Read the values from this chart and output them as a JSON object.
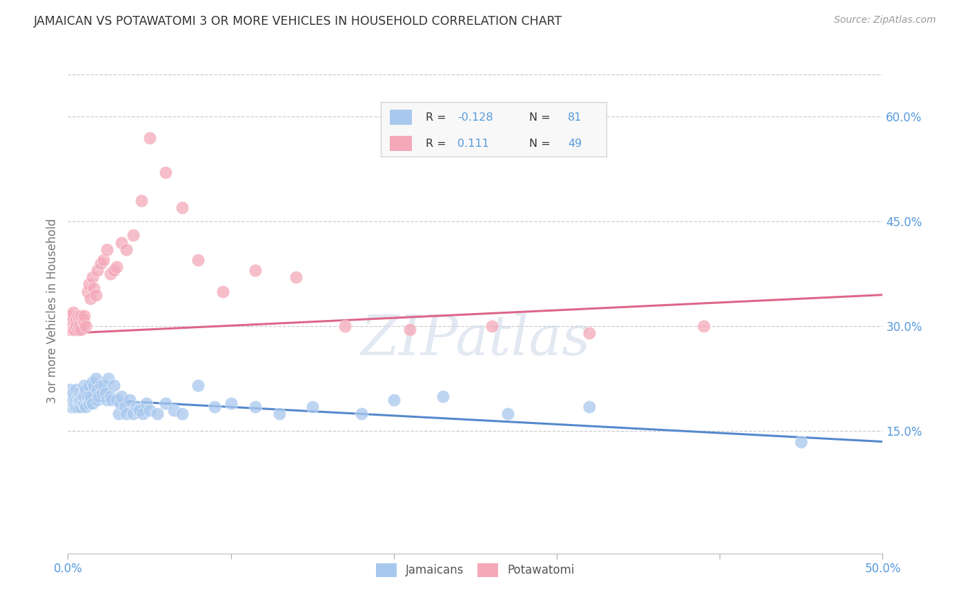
{
  "title": "JAMAICAN VS POTAWATOMI 3 OR MORE VEHICLES IN HOUSEHOLD CORRELATION CHART",
  "source": "Source: ZipAtlas.com",
  "ylabel": "3 or more Vehicles in Household",
  "ytick_vals": [
    0.15,
    0.3,
    0.45,
    0.6
  ],
  "ytick_labels": [
    "15.0%",
    "30.0%",
    "45.0%",
    "60.0%"
  ],
  "xlim": [
    0.0,
    0.5
  ],
  "ylim": [
    -0.025,
    0.67
  ],
  "xtick_positions": [
    0.0,
    0.1,
    0.2,
    0.3,
    0.4,
    0.5
  ],
  "watermark": "ZIPatlas",
  "legend_blue_label": "Jamaicans",
  "legend_pink_label": "Potawatomi",
  "blue_color": "#A8C8EE",
  "pink_color": "#F4A8B8",
  "blue_line_color": "#5588CC",
  "pink_line_color": "#DD6688",
  "title_color": "#333333",
  "axis_label_color": "#777777",
  "tick_color": "#5599DD",
  "grid_color": "#cccccc",
  "background_color": "#ffffff",
  "jamaicans_x": [
    0.001,
    0.001,
    0.002,
    0.002,
    0.003,
    0.003,
    0.003,
    0.004,
    0.004,
    0.004,
    0.005,
    0.005,
    0.005,
    0.006,
    0.006,
    0.006,
    0.007,
    0.007,
    0.007,
    0.008,
    0.008,
    0.008,
    0.009,
    0.009,
    0.01,
    0.01,
    0.01,
    0.011,
    0.011,
    0.012,
    0.012,
    0.013,
    0.013,
    0.014,
    0.014,
    0.015,
    0.015,
    0.016,
    0.017,
    0.018,
    0.018,
    0.019,
    0.02,
    0.021,
    0.022,
    0.023,
    0.024,
    0.025,
    0.026,
    0.027,
    0.028,
    0.03,
    0.031,
    0.032,
    0.033,
    0.035,
    0.036,
    0.038,
    0.04,
    0.042,
    0.044,
    0.046,
    0.048,
    0.05,
    0.055,
    0.06,
    0.065,
    0.07,
    0.08,
    0.09,
    0.1,
    0.115,
    0.13,
    0.15,
    0.18,
    0.2,
    0.23,
    0.27,
    0.32,
    0.45
  ],
  "jamaicans_y": [
    0.21,
    0.195,
    0.185,
    0.2,
    0.19,
    0.195,
    0.205,
    0.185,
    0.19,
    0.2,
    0.195,
    0.185,
    0.21,
    0.195,
    0.2,
    0.185,
    0.19,
    0.205,
    0.195,
    0.185,
    0.2,
    0.195,
    0.19,
    0.2,
    0.215,
    0.19,
    0.2,
    0.185,
    0.21,
    0.195,
    0.2,
    0.19,
    0.215,
    0.195,
    0.2,
    0.19,
    0.22,
    0.215,
    0.225,
    0.21,
    0.195,
    0.2,
    0.215,
    0.205,
    0.215,
    0.205,
    0.195,
    0.225,
    0.2,
    0.195,
    0.215,
    0.195,
    0.175,
    0.19,
    0.2,
    0.185,
    0.175,
    0.195,
    0.175,
    0.185,
    0.18,
    0.175,
    0.19,
    0.18,
    0.175,
    0.19,
    0.18,
    0.175,
    0.215,
    0.185,
    0.19,
    0.185,
    0.175,
    0.185,
    0.175,
    0.195,
    0.2,
    0.175,
    0.185,
    0.135
  ],
  "potawatomi_x": [
    0.001,
    0.001,
    0.002,
    0.002,
    0.003,
    0.003,
    0.004,
    0.004,
    0.005,
    0.005,
    0.006,
    0.006,
    0.007,
    0.007,
    0.008,
    0.008,
    0.009,
    0.01,
    0.01,
    0.011,
    0.012,
    0.013,
    0.014,
    0.015,
    0.016,
    0.017,
    0.018,
    0.02,
    0.022,
    0.024,
    0.026,
    0.028,
    0.03,
    0.033,
    0.036,
    0.04,
    0.045,
    0.05,
    0.06,
    0.07,
    0.08,
    0.095,
    0.115,
    0.14,
    0.17,
    0.21,
    0.26,
    0.32,
    0.39
  ],
  "potawatomi_y": [
    0.31,
    0.295,
    0.305,
    0.315,
    0.295,
    0.32,
    0.305,
    0.295,
    0.31,
    0.3,
    0.315,
    0.295,
    0.31,
    0.3,
    0.315,
    0.295,
    0.31,
    0.305,
    0.315,
    0.3,
    0.35,
    0.36,
    0.34,
    0.37,
    0.355,
    0.345,
    0.38,
    0.39,
    0.395,
    0.41,
    0.375,
    0.38,
    0.385,
    0.42,
    0.41,
    0.43,
    0.48,
    0.57,
    0.52,
    0.47,
    0.395,
    0.35,
    0.38,
    0.37,
    0.3,
    0.295,
    0.3,
    0.29,
    0.3
  ]
}
